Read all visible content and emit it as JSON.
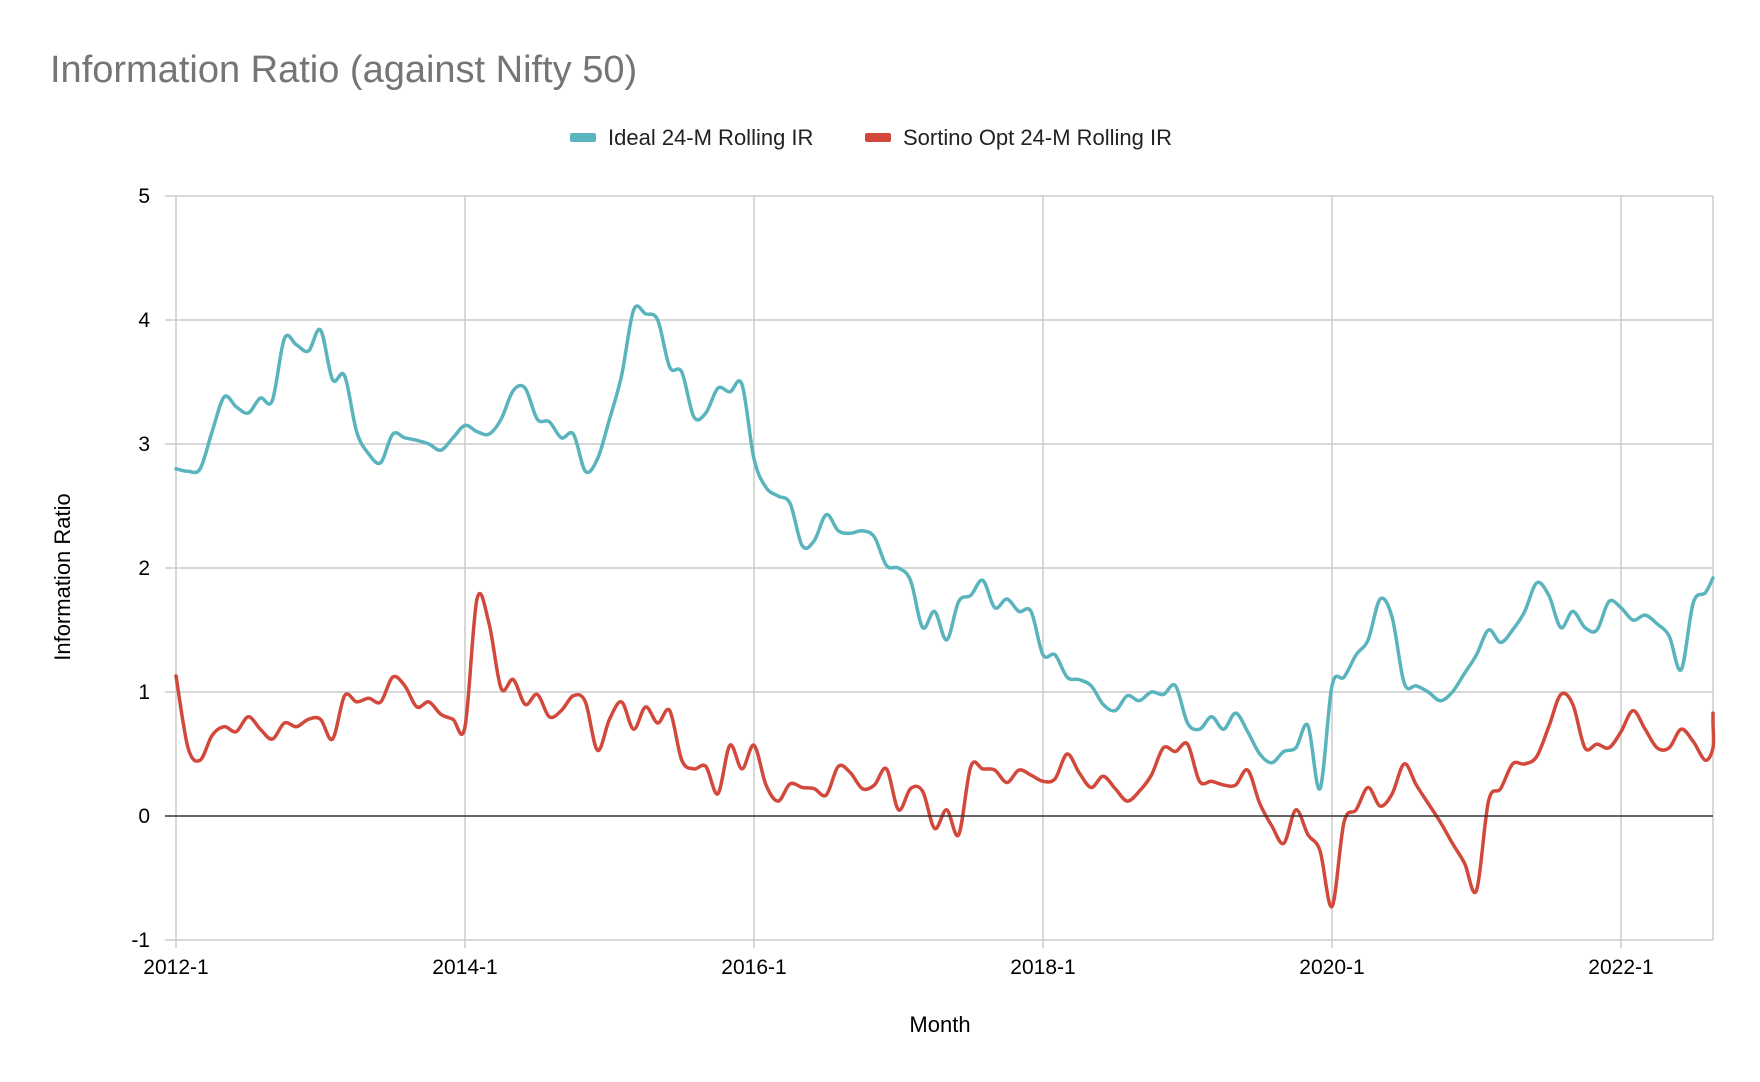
{
  "chart_data": {
    "type": "line",
    "title": "Information Ratio (against Nifty 50)",
    "xlabel": "Month",
    "ylabel": "Information Ratio",
    "ylim": [
      -1,
      5
    ],
    "yticks": [
      "-1",
      "0",
      "1",
      "2",
      "3",
      "4",
      "5"
    ],
    "xticks": [
      "2012-1",
      "2014-1",
      "2016-1",
      "2018-1",
      "2020-1",
      "2022-1"
    ],
    "x_start": "2012-1",
    "x_end": "2022-8",
    "grid": true,
    "legend_position": "top",
    "series": [
      {
        "name": "Ideal 24-M Rolling IR",
        "color": "#5ab4bd",
        "points": [
          [
            "2012-1",
            2.8
          ],
          [
            "2012-2",
            2.78
          ],
          [
            "2012-3",
            2.8
          ],
          [
            "2012-4",
            3.1
          ],
          [
            "2012-5",
            3.38
          ],
          [
            "2012-6",
            3.3
          ],
          [
            "2012-7",
            3.25
          ],
          [
            "2012-8",
            3.37
          ],
          [
            "2012-9",
            3.35
          ],
          [
            "2012-10",
            3.85
          ],
          [
            "2012-11",
            3.8
          ],
          [
            "2012-12",
            3.75
          ],
          [
            "2013-1",
            3.92
          ],
          [
            "2013-2",
            3.52
          ],
          [
            "2013-3",
            3.55
          ],
          [
            "2013-4",
            3.1
          ],
          [
            "2013-5",
            2.92
          ],
          [
            "2013-6",
            2.85
          ],
          [
            "2013-7",
            3.08
          ],
          [
            "2013-8",
            3.05
          ],
          [
            "2013-9",
            3.03
          ],
          [
            "2013-10",
            3.0
          ],
          [
            "2013-11",
            2.95
          ],
          [
            "2013-12",
            3.05
          ],
          [
            "2014-1",
            3.15
          ],
          [
            "2014-2",
            3.1
          ],
          [
            "2014-3",
            3.08
          ],
          [
            "2014-4",
            3.2
          ],
          [
            "2014-5",
            3.43
          ],
          [
            "2014-6",
            3.45
          ],
          [
            "2014-7",
            3.2
          ],
          [
            "2014-8",
            3.18
          ],
          [
            "2014-9",
            3.05
          ],
          [
            "2014-10",
            3.08
          ],
          [
            "2014-11",
            2.78
          ],
          [
            "2014-12",
            2.88
          ],
          [
            "2015-1",
            3.2
          ],
          [
            "2015-2",
            3.55
          ],
          [
            "2015-3",
            4.08
          ],
          [
            "2015-4",
            4.05
          ],
          [
            "2015-5",
            4.0
          ],
          [
            "2015-6",
            3.62
          ],
          [
            "2015-7",
            3.58
          ],
          [
            "2015-8",
            3.22
          ],
          [
            "2015-9",
            3.25
          ],
          [
            "2015-10",
            3.45
          ],
          [
            "2015-11",
            3.42
          ],
          [
            "2015-12",
            3.48
          ],
          [
            "2016-1",
            2.88
          ],
          [
            "2016-2",
            2.65
          ],
          [
            "2016-3",
            2.58
          ],
          [
            "2016-4",
            2.52
          ],
          [
            "2016-5",
            2.18
          ],
          [
            "2016-6",
            2.22
          ],
          [
            "2016-7",
            2.43
          ],
          [
            "2016-8",
            2.3
          ],
          [
            "2016-9",
            2.28
          ],
          [
            "2016-10",
            2.3
          ],
          [
            "2016-11",
            2.25
          ],
          [
            "2016-12",
            2.02
          ],
          [
            "2017-1",
            2.0
          ],
          [
            "2017-2",
            1.9
          ],
          [
            "2017-3",
            1.52
          ],
          [
            "2017-4",
            1.65
          ],
          [
            "2017-5",
            1.42
          ],
          [
            "2017-6",
            1.73
          ],
          [
            "2017-7",
            1.78
          ],
          [
            "2017-8",
            1.9
          ],
          [
            "2017-9",
            1.68
          ],
          [
            "2017-10",
            1.75
          ],
          [
            "2017-11",
            1.65
          ],
          [
            "2017-12",
            1.65
          ],
          [
            "2018-1",
            1.3
          ],
          [
            "2018-2",
            1.3
          ],
          [
            "2018-3",
            1.12
          ],
          [
            "2018-4",
            1.1
          ],
          [
            "2018-5",
            1.05
          ],
          [
            "2018-6",
            0.9
          ],
          [
            "2018-7",
            0.85
          ],
          [
            "2018-8",
            0.97
          ],
          [
            "2018-9",
            0.93
          ],
          [
            "2018-10",
            1.0
          ],
          [
            "2018-11",
            0.98
          ],
          [
            "2018-12",
            1.05
          ],
          [
            "2019-1",
            0.75
          ],
          [
            "2019-2",
            0.7
          ],
          [
            "2019-3",
            0.8
          ],
          [
            "2019-4",
            0.7
          ],
          [
            "2019-5",
            0.83
          ],
          [
            "2019-6",
            0.68
          ],
          [
            "2019-7",
            0.5
          ],
          [
            "2019-8",
            0.43
          ],
          [
            "2019-9",
            0.52
          ],
          [
            "2019-10",
            0.55
          ],
          [
            "2019-11",
            0.73
          ],
          [
            "2019-12",
            0.22
          ],
          [
            "2020-1",
            1.05
          ],
          [
            "2020-2",
            1.12
          ],
          [
            "2020-3",
            1.3
          ],
          [
            "2020-4",
            1.42
          ],
          [
            "2020-5",
            1.75
          ],
          [
            "2020-6",
            1.6
          ],
          [
            "2020-7",
            1.07
          ],
          [
            "2020-8",
            1.05
          ],
          [
            "2020-9",
            1.0
          ],
          [
            "2020-10",
            0.93
          ],
          [
            "2020-11",
            1.0
          ],
          [
            "2020-12",
            1.15
          ],
          [
            "2021-1",
            1.3
          ],
          [
            "2021-2",
            1.5
          ],
          [
            "2021-3",
            1.4
          ],
          [
            "2021-4",
            1.5
          ],
          [
            "2021-5",
            1.65
          ],
          [
            "2021-6",
            1.88
          ],
          [
            "2021-7",
            1.78
          ],
          [
            "2021-8",
            1.52
          ],
          [
            "2021-9",
            1.65
          ],
          [
            "2021-10",
            1.52
          ],
          [
            "2021-11",
            1.5
          ],
          [
            "2021-12",
            1.73
          ],
          [
            "2022-1",
            1.68
          ],
          [
            "2022-2",
            1.58
          ],
          [
            "2022-3",
            1.62
          ],
          [
            "2022-4",
            1.55
          ],
          [
            "2022-5",
            1.45
          ],
          [
            "2022-6",
            1.18
          ],
          [
            "2022-7",
            1.72
          ],
          [
            "2022-8",
            1.8
          ],
          [
            "2022-9",
            1.92
          ]
        ]
      },
      {
        "name": "Sortino Opt 24-M Rolling IR",
        "color": "#d2493c",
        "points": [
          [
            "2012-1",
            1.13
          ],
          [
            "2012-2",
            0.55
          ],
          [
            "2012-3",
            0.45
          ],
          [
            "2012-4",
            0.65
          ],
          [
            "2012-5",
            0.72
          ],
          [
            "2012-6",
            0.68
          ],
          [
            "2012-7",
            0.8
          ],
          [
            "2012-8",
            0.7
          ],
          [
            "2012-9",
            0.62
          ],
          [
            "2012-10",
            0.75
          ],
          [
            "2012-11",
            0.72
          ],
          [
            "2012-12",
            0.78
          ],
          [
            "2013-1",
            0.78
          ],
          [
            "2013-2",
            0.62
          ],
          [
            "2013-3",
            0.97
          ],
          [
            "2013-4",
            0.92
          ],
          [
            "2013-5",
            0.95
          ],
          [
            "2013-6",
            0.92
          ],
          [
            "2013-7",
            1.12
          ],
          [
            "2013-8",
            1.05
          ],
          [
            "2013-9",
            0.88
          ],
          [
            "2013-10",
            0.92
          ],
          [
            "2013-11",
            0.82
          ],
          [
            "2013-12",
            0.78
          ],
          [
            "2014-1",
            0.72
          ],
          [
            "2014-2",
            1.75
          ],
          [
            "2014-3",
            1.55
          ],
          [
            "2014-4",
            1.03
          ],
          [
            "2014-5",
            1.1
          ],
          [
            "2014-6",
            0.9
          ],
          [
            "2014-7",
            0.98
          ],
          [
            "2014-8",
            0.8
          ],
          [
            "2014-9",
            0.85
          ],
          [
            "2014-10",
            0.97
          ],
          [
            "2014-11",
            0.92
          ],
          [
            "2014-12",
            0.53
          ],
          [
            "2015-1",
            0.78
          ],
          [
            "2015-2",
            0.92
          ],
          [
            "2015-3",
            0.7
          ],
          [
            "2015-4",
            0.88
          ],
          [
            "2015-5",
            0.75
          ],
          [
            "2015-6",
            0.85
          ],
          [
            "2015-7",
            0.45
          ],
          [
            "2015-8",
            0.38
          ],
          [
            "2015-9",
            0.4
          ],
          [
            "2015-10",
            0.18
          ],
          [
            "2015-11",
            0.57
          ],
          [
            "2015-12",
            0.38
          ],
          [
            "2016-1",
            0.57
          ],
          [
            "2016-2",
            0.25
          ],
          [
            "2016-3",
            0.12
          ],
          [
            "2016-4",
            0.26
          ],
          [
            "2016-5",
            0.23
          ],
          [
            "2016-6",
            0.22
          ],
          [
            "2016-7",
            0.17
          ],
          [
            "2016-8",
            0.4
          ],
          [
            "2016-9",
            0.35
          ],
          [
            "2016-10",
            0.22
          ],
          [
            "2016-11",
            0.25
          ],
          [
            "2016-12",
            0.38
          ],
          [
            "2017-1",
            0.05
          ],
          [
            "2017-2",
            0.22
          ],
          [
            "2017-3",
            0.2
          ],
          [
            "2017-4",
            -0.1
          ],
          [
            "2017-5",
            0.05
          ],
          [
            "2017-6",
            -0.15
          ],
          [
            "2017-7",
            0.4
          ],
          [
            "2017-8",
            0.38
          ],
          [
            "2017-9",
            0.37
          ],
          [
            "2017-10",
            0.27
          ],
          [
            "2017-11",
            0.37
          ],
          [
            "2017-12",
            0.33
          ],
          [
            "2018-1",
            0.28
          ],
          [
            "2018-2",
            0.3
          ],
          [
            "2018-3",
            0.5
          ],
          [
            "2018-4",
            0.35
          ],
          [
            "2018-5",
            0.23
          ],
          [
            "2018-6",
            0.32
          ],
          [
            "2018-7",
            0.22
          ],
          [
            "2018-8",
            0.12
          ],
          [
            "2018-9",
            0.2
          ],
          [
            "2018-10",
            0.33
          ],
          [
            "2018-11",
            0.55
          ],
          [
            "2018-12",
            0.52
          ],
          [
            "2019-1",
            0.58
          ],
          [
            "2019-2",
            0.28
          ],
          [
            "2019-3",
            0.28
          ],
          [
            "2019-4",
            0.25
          ],
          [
            "2019-5",
            0.25
          ],
          [
            "2019-6",
            0.37
          ],
          [
            "2019-7",
            0.1
          ],
          [
            "2019-8",
            -0.08
          ],
          [
            "2019-9",
            -0.22
          ],
          [
            "2019-10",
            0.05
          ],
          [
            "2019-11",
            -0.15
          ],
          [
            "2019-12",
            -0.28
          ],
          [
            "2020-1",
            -0.73
          ],
          [
            "2020-2",
            -0.05
          ],
          [
            "2020-3",
            0.05
          ],
          [
            "2020-4",
            0.23
          ],
          [
            "2020-5",
            0.08
          ],
          [
            "2020-6",
            0.18
          ],
          [
            "2020-7",
            0.42
          ],
          [
            "2020-8",
            0.25
          ],
          [
            "2020-9",
            0.1
          ],
          [
            "2020-10",
            -0.05
          ],
          [
            "2020-11",
            -0.22
          ],
          [
            "2020-12",
            -0.38
          ],
          [
            "2021-1",
            -0.6
          ],
          [
            "2021-2",
            0.12
          ],
          [
            "2021-3",
            0.22
          ],
          [
            "2021-4",
            0.42
          ],
          [
            "2021-5",
            0.42
          ],
          [
            "2021-6",
            0.48
          ],
          [
            "2021-7",
            0.72
          ],
          [
            "2021-8",
            0.98
          ],
          [
            "2021-9",
            0.9
          ],
          [
            "2021-10",
            0.55
          ],
          [
            "2021-11",
            0.58
          ],
          [
            "2021-12",
            0.55
          ],
          [
            "2022-1",
            0.68
          ],
          [
            "2022-2",
            0.85
          ],
          [
            "2022-3",
            0.7
          ],
          [
            "2022-4",
            0.55
          ],
          [
            "2022-5",
            0.55
          ],
          [
            "2022-6",
            0.7
          ],
          [
            "2022-7",
            0.6
          ],
          [
            "2022-8",
            0.45
          ],
          [
            "2022-9",
            0.55
          ],
          [
            "2022-10",
            0.75
          ],
          [
            "2022-11",
            0.83
          ]
        ]
      }
    ]
  }
}
